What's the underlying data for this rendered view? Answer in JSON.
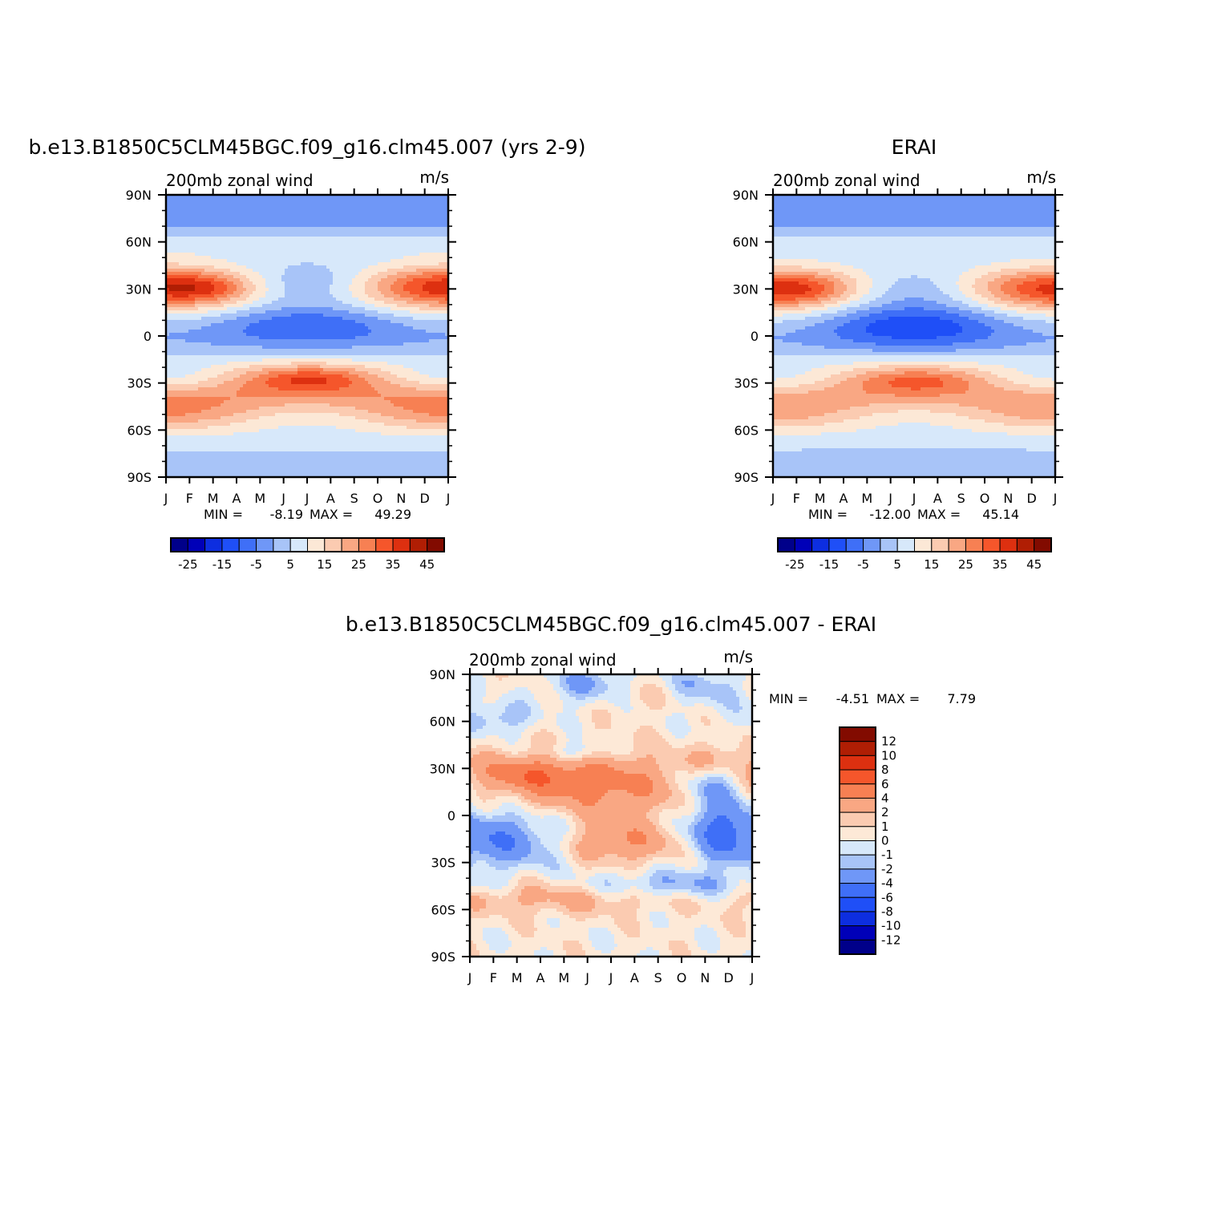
{
  "chart_data": [
    {
      "type": "heatmap",
      "title": "b.e13.B1850C5CLM45BGC.f09_g16.clm45.007 (yrs 2-9)",
      "left_label": "200mb zonal wind",
      "units_label": "m/s",
      "x_tick_labels": [
        "J",
        "F",
        "M",
        "A",
        "M",
        "J",
        "J",
        "A",
        "S",
        "O",
        "N",
        "D",
        "J"
      ],
      "y_tick_labels": [
        "90N",
        "60N",
        "30N",
        "0",
        "30S",
        "60S",
        "90S"
      ],
      "xlim": [
        0,
        12
      ],
      "ylim": [
        -90,
        90
      ],
      "min_label": "MIN =",
      "min_value": "-8.19",
      "max_label": "MAX =",
      "max_value": "49.29",
      "contour_levels": [
        -30,
        -25,
        -20,
        -15,
        -10,
        -5,
        0,
        5,
        10,
        15,
        20,
        25,
        30,
        35,
        40,
        45,
        50
      ],
      "colorbar_labels": [
        "-25",
        "-15",
        "-5",
        "5",
        "15",
        "25",
        "35",
        "45"
      ],
      "colorbar_orientation": "horizontal",
      "field_description_lat_deg": [
        -90,
        -60,
        -45,
        -30,
        -15,
        0,
        15,
        30,
        45,
        60,
        90
      ],
      "field_description_mean_ms": [
        3,
        10,
        30,
        30,
        4,
        -3,
        5,
        30,
        18,
        5,
        3
      ],
      "peaks": [
        {
          "month": 1.8,
          "lat": 30,
          "value": 49.29
        },
        {
          "month": 6.2,
          "lat": -27,
          "value": 44
        },
        {
          "month": 6.0,
          "lat": 3,
          "value": -8.19
        }
      ]
    },
    {
      "type": "heatmap",
      "title": "ERAI",
      "left_label": "200mb zonal wind",
      "units_label": "m/s",
      "x_tick_labels": [
        "J",
        "F",
        "M",
        "A",
        "M",
        "J",
        "J",
        "A",
        "S",
        "O",
        "N",
        "D",
        "J"
      ],
      "y_tick_labels": [
        "90N",
        "60N",
        "30N",
        "0",
        "30S",
        "60S",
        "90S"
      ],
      "xlim": [
        0,
        12
      ],
      "ylim": [
        -90,
        90
      ],
      "min_label": "MIN =",
      "min_value": "-12.00",
      "max_label": "MAX =",
      "max_value": "45.14",
      "contour_levels": [
        -30,
        -25,
        -20,
        -15,
        -10,
        -5,
        0,
        5,
        10,
        15,
        20,
        25,
        30,
        35,
        40,
        45,
        50
      ],
      "colorbar_labels": [
        "-25",
        "-15",
        "-5",
        "5",
        "15",
        "25",
        "35",
        "45"
      ],
      "colorbar_orientation": "horizontal",
      "peaks": [
        {
          "month": 1.5,
          "lat": 30,
          "value": 45.14
        },
        {
          "month": 6.3,
          "lat": -28,
          "value": 41
        },
        {
          "month": 7.0,
          "lat": 6,
          "value": -12.0
        }
      ]
    },
    {
      "type": "heatmap",
      "title": "b.e13.B1850C5CLM45BGC.f09_g16.clm45.007 - ERAI",
      "left_label": "200mb zonal wind",
      "units_label": "m/s",
      "x_tick_labels": [
        "J",
        "F",
        "M",
        "A",
        "M",
        "J",
        "J",
        "A",
        "S",
        "O",
        "N",
        "D",
        "J"
      ],
      "y_tick_labels": [
        "90N",
        "60N",
        "30N",
        "0",
        "30S",
        "60S",
        "90S"
      ],
      "xlim": [
        0,
        12
      ],
      "ylim": [
        -90,
        90
      ],
      "min_label": "MIN =",
      "min_value": "-4.51",
      "max_label": "MAX =",
      "max_value": "7.79",
      "contour_levels": [
        -14,
        -12,
        -10,
        -8,
        -6,
        -4,
        -2,
        -1,
        0,
        1,
        2,
        4,
        6,
        8,
        10,
        12,
        14
      ],
      "colorbar_labels": [
        "12",
        "10",
        "8",
        "6",
        "4",
        "2",
        "1",
        "0",
        "-1",
        "-2",
        "-4",
        "-6",
        "-8",
        "-10",
        "-12"
      ],
      "colorbar_orientation": "vertical"
    }
  ],
  "colors": {
    "blue_red_16": [
      "#00008a",
      "#0000b8",
      "#0d2ee0",
      "#1f4ff7",
      "#3f6ff7",
      "#6f97f7",
      "#a8c4f8",
      "#d7e8fa",
      "#fce8d6",
      "#fbcbb1",
      "#f9a783",
      "#f78053",
      "#f5562b",
      "#dd3010",
      "#b01e04",
      "#820b00"
    ],
    "diff_16": [
      "#00008a",
      "#0000b8",
      "#0d2ee0",
      "#1f4ff7",
      "#3f6ff7",
      "#6f97f7",
      "#a8c4f8",
      "#d7e8fa",
      "#fde9d7",
      "#fbcbb1",
      "#f9a783",
      "#f78053",
      "#f5562b",
      "#dd3010",
      "#b01e04",
      "#820b00"
    ]
  }
}
